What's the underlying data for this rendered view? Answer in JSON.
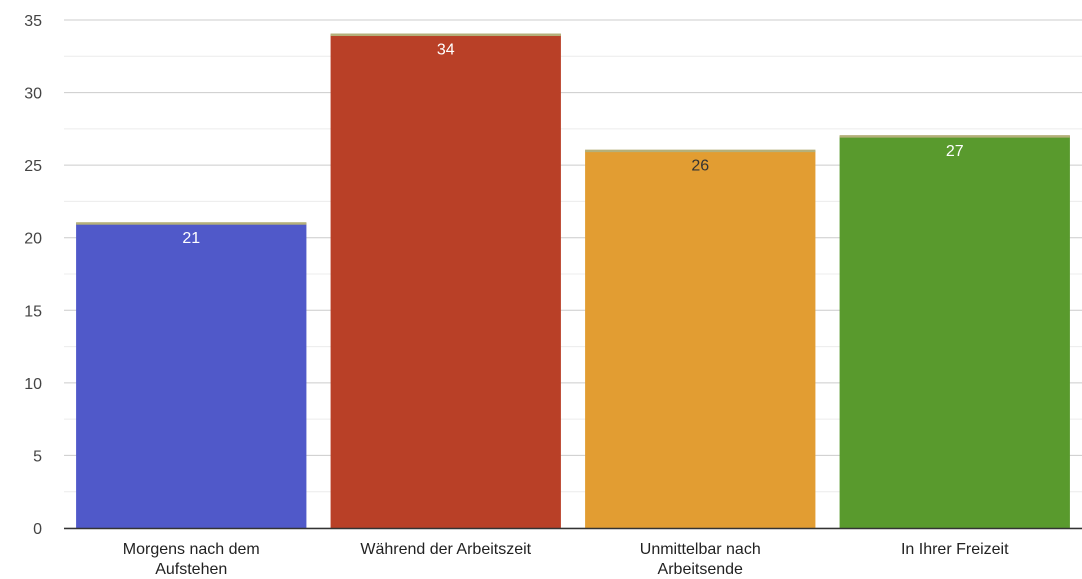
{
  "chart_data": {
    "type": "bar",
    "categories": [
      [
        "Morgens nach dem",
        "Aufstehen"
      ],
      [
        "Während der Arbeitszeit"
      ],
      [
        "Unmittelbar nach",
        "Arbeitsende"
      ],
      [
        "In Ihrer Freizeit"
      ]
    ],
    "values": [
      21,
      34,
      26,
      27
    ],
    "bar_colors": [
      "#5059c9",
      "#b94027",
      "#e29d32",
      "#599a2d"
    ],
    "label_colors": [
      "#ffffff",
      "#ffffff",
      "#333333",
      "#ffffff"
    ],
    "bar_top_accent_color": "#b5b07a",
    "ylim": [
      0,
      35
    ],
    "yticks": [
      0,
      5,
      10,
      15,
      20,
      25,
      30,
      35
    ],
    "minor_gridlines": true,
    "grid": true,
    "title": "",
    "xlabel": "",
    "ylabel": ""
  }
}
